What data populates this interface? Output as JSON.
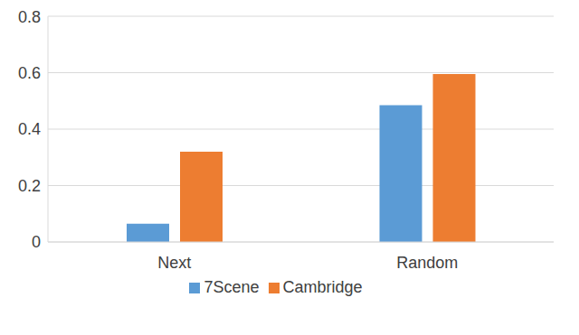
{
  "chart_data": {
    "type": "bar",
    "categories": [
      "Next",
      "Random"
    ],
    "series": [
      {
        "name": "7Scene",
        "color": "#5b9bd5",
        "values": [
          0.065,
          0.485
        ]
      },
      {
        "name": "Cambridge",
        "color": "#ed7d31",
        "values": [
          0.32,
          0.595
        ]
      }
    ],
    "ylim": [
      0,
      0.8
    ],
    "yticks": [
      0,
      0.2,
      0.4,
      0.6,
      0.8
    ],
    "grid": true,
    "legend": "bottom"
  }
}
